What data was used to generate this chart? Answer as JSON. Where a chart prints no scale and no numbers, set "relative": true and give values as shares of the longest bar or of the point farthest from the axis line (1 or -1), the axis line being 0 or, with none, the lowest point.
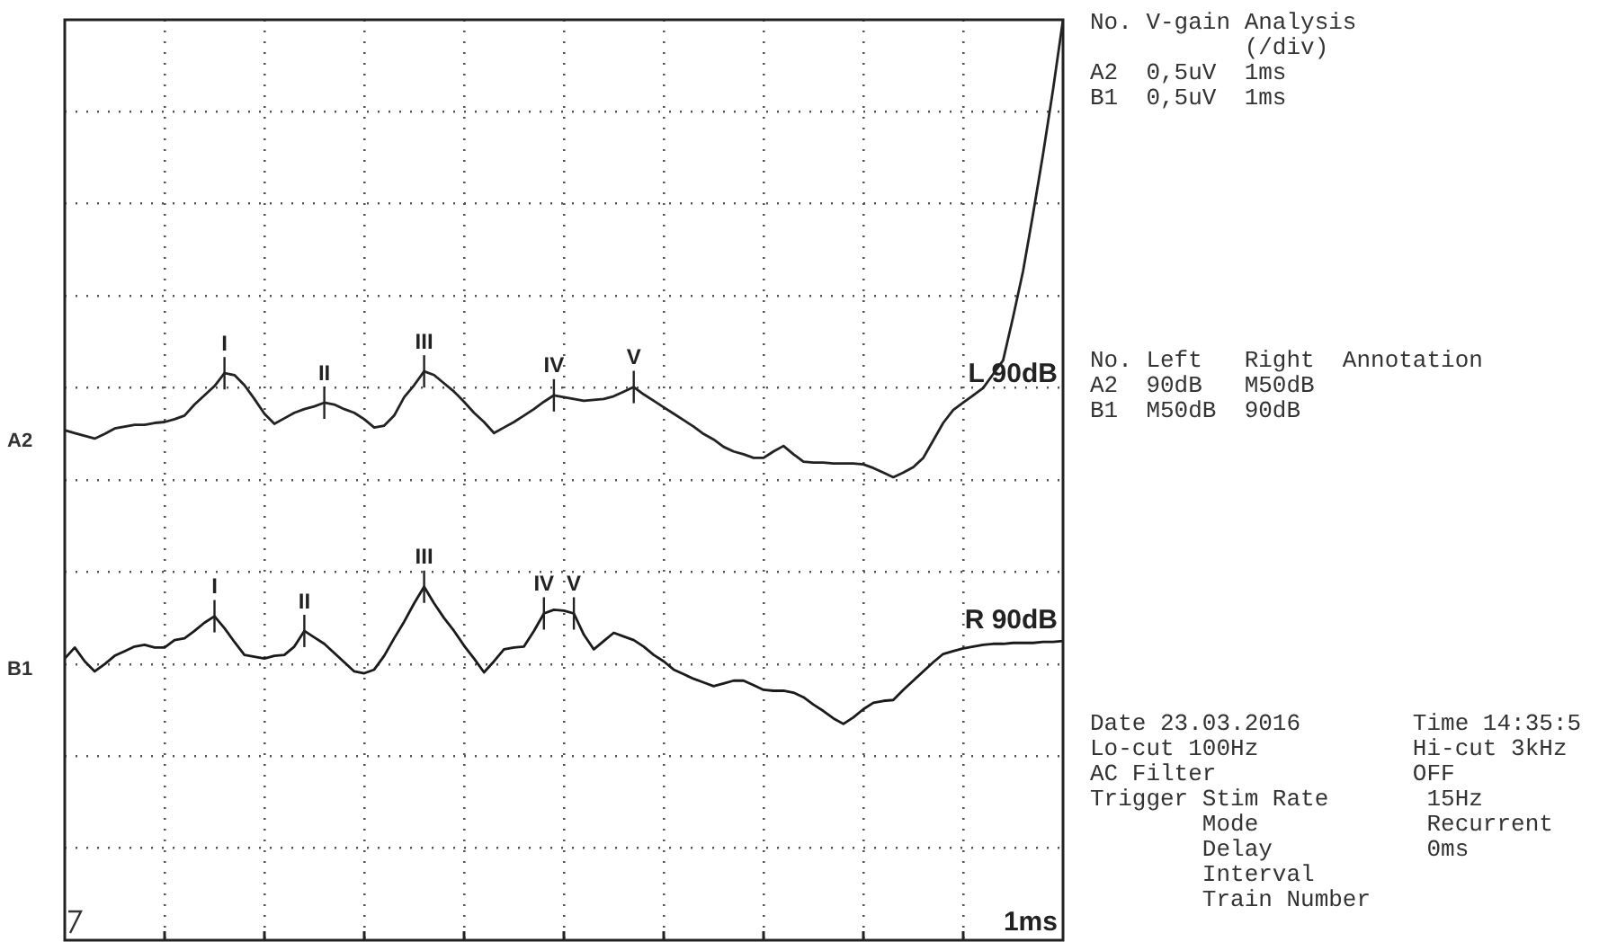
{
  "chart_data": {
    "type": "line",
    "relative": true,
    "categories": [
      null,
      null,
      null,
      null,
      null,
      null,
      null,
      null,
      null,
      null,
      null,
      null,
      null,
      null,
      null,
      null,
      null,
      null,
      null,
      null,
      null,
      null,
      null,
      null,
      null,
      null,
      null,
      null,
      null,
      null,
      null,
      null,
      null,
      null,
      null,
      null,
      null,
      null,
      null,
      null,
      null,
      null,
      null,
      null,
      null,
      null,
      null,
      null,
      null,
      null,
      null,
      null,
      null,
      null,
      null,
      null,
      null,
      null,
      null,
      null,
      null,
      null,
      null,
      null,
      null,
      null,
      null,
      null,
      null,
      null,
      null,
      null,
      null,
      null,
      null,
      null,
      null,
      null,
      null,
      null,
      null,
      null,
      null,
      null,
      null,
      null,
      null,
      null,
      null,
      null,
      null,
      null,
      null,
      null,
      null,
      null,
      null,
      null,
      null,
      null,
      null
    ],
    "grid": true,
    "legend": false,
    "tick_labels": false,
    "marker": "none",
    "line_style": "solid",
    "series": [
      {
        "name": "A2",
        "color": "#222222",
        "values": [
          0.554,
          0.551,
          0.548,
          0.545,
          0.55,
          0.556,
          0.558,
          0.56,
          0.56,
          0.562,
          0.563,
          0.566,
          0.57,
          0.582,
          0.592,
          0.602,
          0.616,
          0.614,
          0.603,
          0.588,
          0.572,
          0.561,
          0.567,
          0.573,
          0.577,
          0.58,
          0.584,
          0.582,
          0.577,
          0.573,
          0.566,
          0.557,
          0.559,
          0.57,
          0.59,
          0.603,
          0.618,
          0.614,
          0.605,
          0.596,
          0.585,
          0.573,
          0.563,
          0.551,
          0.557,
          0.563,
          0.57,
          0.577,
          0.585,
          0.592,
          0.59,
          0.588,
          0.586,
          0.587,
          0.588,
          0.591,
          0.596,
          0.601,
          0.593,
          0.586,
          0.579,
          0.572,
          0.565,
          0.558,
          0.55,
          0.544,
          0.536,
          0.531,
          0.528,
          0.524,
          0.524,
          0.531,
          0.537,
          0.528,
          0.52,
          0.519,
          0.519,
          0.518,
          0.518,
          0.518,
          0.517,
          0.513,
          0.508,
          0.503,
          0.508,
          0.514,
          0.524,
          0.543,
          0.562,
          0.576,
          0.584,
          0.592,
          0.6,
          0.615,
          0.63,
          0.677,
          0.727,
          0.789,
          0.854,
          0.924,
          1
        ]
      },
      {
        "name": "B1",
        "color": "#1a1a1a",
        "values": [
          0.306,
          0.318,
          0.303,
          0.292,
          0.3,
          0.309,
          0.314,
          0.319,
          0.321,
          0.318,
          0.318,
          0.326,
          0.328,
          0.336,
          0.345,
          0.352,
          0.339,
          0.324,
          0.31,
          0.308,
          0.306,
          0.309,
          0.31,
          0.319,
          0.336,
          0.329,
          0.322,
          0.312,
          0.302,
          0.292,
          0.29,
          0.294,
          0.309,
          0.328,
          0.346,
          0.366,
          0.384,
          0.366,
          0.35,
          0.336,
          0.32,
          0.306,
          0.291,
          0.303,
          0.316,
          0.318,
          0.319,
          0.336,
          0.355,
          0.359,
          0.358,
          0.355,
          0.332,
          0.316,
          0.325,
          0.334,
          0.33,
          0.326,
          0.319,
          0.31,
          0.303,
          0.294,
          0.289,
          0.284,
          0.28,
          0.276,
          0.279,
          0.282,
          0.282,
          0.277,
          0.272,
          0.271,
          0.271,
          0.269,
          0.264,
          0.256,
          0.249,
          0.241,
          0.235,
          0.242,
          0.251,
          0.258,
          0.26,
          0.261,
          0.272,
          0.282,
          0.292,
          0.302,
          0.311,
          0.314,
          0.317,
          0.319,
          0.321,
          0.322,
          0.322,
          0.323,
          0.323,
          0.323,
          0.324,
          0.324,
          0.325
        ]
      }
    ],
    "annotations": [
      {
        "text": "I",
        "y": 0.616
      },
      {
        "text": "II",
        "y": 0.584
      },
      {
        "text": "III",
        "y": 0.618
      },
      {
        "text": "IV",
        "y": 0.592
      },
      {
        "text": "V",
        "y": 0.601
      },
      {
        "text": "I",
        "y": 0.352
      },
      {
        "text": "II",
        "y": 0.336
      },
      {
        "text": "III",
        "y": 0.384
      },
      {
        "text": "IV",
        "y": 0.355
      },
      {
        "text": "V",
        "y": 0.355
      },
      "L 90dB",
      "R 90dB",
      "1ms",
      "No. V-gain Analysis\n           (/div)\nA2  0,5uV  1ms\nB1  0,5uV  1ms",
      "No. Left   Right  Annotation\nA2  90dB   M50dB\nB1  M50dB  90dB",
      "Date 23.03.2016        Time 14:35:5\nLo-cut 100Hz           Hi-cut 3kHz\nAC Filter              OFF\nTrigger Stim Rate       15Hz\n        Mode            Recurrent\n        Delay           0ms\n        Interval\n        Train Number"
    ]
  }
}
